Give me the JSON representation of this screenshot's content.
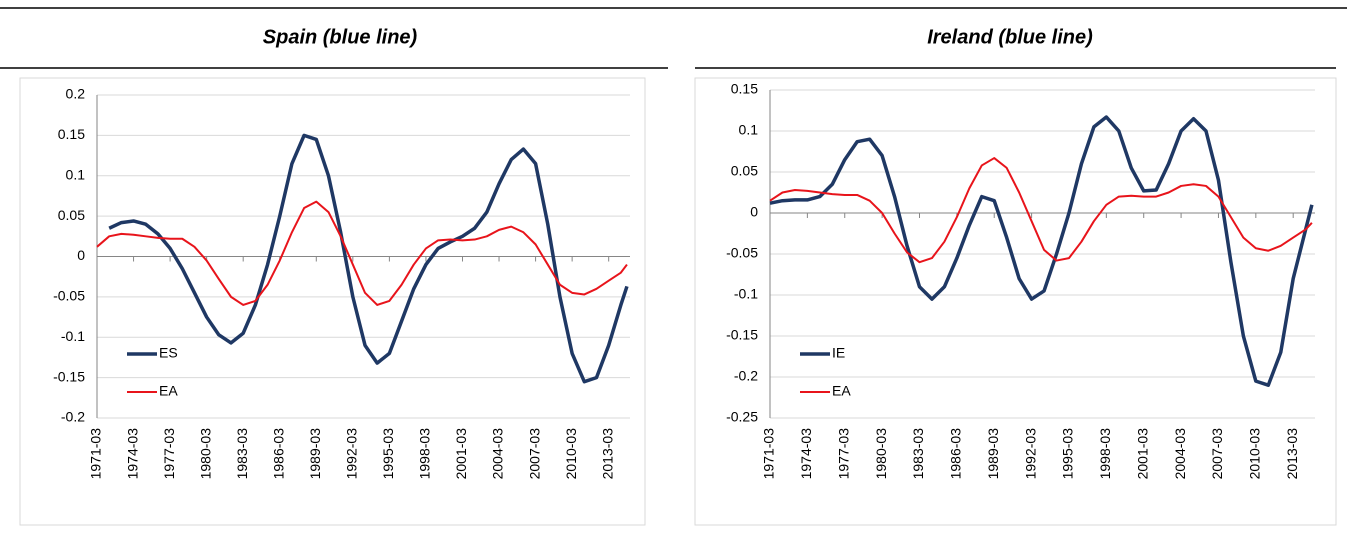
{
  "chart_data": [
    {
      "type": "line",
      "title": "Spain (blue line)",
      "x": [
        1971,
        1972,
        1973,
        1974,
        1975,
        1976,
        1977,
        1978,
        1979,
        1980,
        1981,
        1982,
        1983,
        1984,
        1985,
        1986,
        1987,
        1988,
        1989,
        1990,
        1991,
        1992,
        1993,
        1994,
        1995,
        1996,
        1997,
        1998,
        1999,
        2000,
        2001,
        2002,
        2003,
        2004,
        2005,
        2006,
        2007,
        2008,
        2009,
        2010,
        2011,
        2012,
        2013,
        2014,
        2014.5
      ],
      "series": [
        {
          "name": "ES",
          "color": "#1f3864",
          "values": [
            null,
            0.035,
            0.042,
            0.044,
            0.04,
            0.028,
            0.01,
            -0.015,
            -0.045,
            -0.075,
            -0.097,
            -0.107,
            -0.095,
            -0.06,
            -0.01,
            0.05,
            0.115,
            0.15,
            0.145,
            0.1,
            0.03,
            -0.05,
            -0.11,
            -0.132,
            -0.12,
            -0.08,
            -0.04,
            -0.01,
            0.01,
            0.018,
            0.025,
            0.035,
            0.055,
            0.09,
            0.12,
            0.133,
            0.115,
            0.04,
            -0.05,
            -0.12,
            -0.155,
            -0.15,
            -0.11,
            -0.06,
            -0.037
          ]
        },
        {
          "name": "EA",
          "color": "#e8141b",
          "values": [
            0.012,
            0.025,
            0.028,
            0.027,
            0.025,
            0.023,
            0.022,
            0.022,
            0.012,
            -0.005,
            -0.028,
            -0.05,
            -0.06,
            -0.055,
            -0.035,
            -0.005,
            0.03,
            0.06,
            0.068,
            0.055,
            0.025,
            -0.01,
            -0.045,
            -0.06,
            -0.055,
            -0.035,
            -0.01,
            0.01,
            0.02,
            0.021,
            0.02,
            0.021,
            0.025,
            0.033,
            0.037,
            0.03,
            0.015,
            -0.01,
            -0.035,
            -0.045,
            -0.047,
            -0.04,
            -0.03,
            -0.02,
            -0.01
          ]
        }
      ],
      "xlim": [
        1971,
        2014.75
      ],
      "xticks": [
        {
          "value": 1971,
          "label": "1971-03"
        },
        {
          "value": 1974,
          "label": "1974-03"
        },
        {
          "value": 1977,
          "label": "1977-03"
        },
        {
          "value": 1980,
          "label": "1980-03"
        },
        {
          "value": 1983,
          "label": "1983-03"
        },
        {
          "value": 1986,
          "label": "1986-03"
        },
        {
          "value": 1989,
          "label": "1989-03"
        },
        {
          "value": 1992,
          "label": "1992-03"
        },
        {
          "value": 1995,
          "label": "1995-03"
        },
        {
          "value": 1998,
          "label": "1998-03"
        },
        {
          "value": 2001,
          "label": "2001-03"
        },
        {
          "value": 2004,
          "label": "2004-03"
        },
        {
          "value": 2007,
          "label": "2007-03"
        },
        {
          "value": 2010,
          "label": "2010-03"
        },
        {
          "value": 2013,
          "label": "2013-03"
        }
      ],
      "ylim": [
        -0.2,
        0.2
      ],
      "yticks": [
        -0.2,
        -0.15,
        -0.1,
        -0.05,
        0,
        0.05,
        0.1,
        0.15,
        0.2
      ],
      "grid": true,
      "legend": "lower left"
    },
    {
      "type": "line",
      "title": "Ireland (blue line)",
      "x": [
        1971,
        1972,
        1973,
        1974,
        1975,
        1976,
        1977,
        1978,
        1979,
        1980,
        1981,
        1982,
        1983,
        1984,
        1985,
        1986,
        1987,
        1988,
        1989,
        1990,
        1991,
        1992,
        1993,
        1994,
        1995,
        1996,
        1997,
        1998,
        1999,
        2000,
        2001,
        2002,
        2003,
        2004,
        2005,
        2006,
        2007,
        2008,
        2009,
        2010,
        2011,
        2012,
        2013,
        2014,
        2014.5
      ],
      "series": [
        {
          "name": "IE",
          "color": "#1f3864",
          "values": [
            0.012,
            0.015,
            0.016,
            0.016,
            0.02,
            0.035,
            0.065,
            0.087,
            0.09,
            0.07,
            0.02,
            -0.04,
            -0.09,
            -0.105,
            -0.09,
            -0.055,
            -0.015,
            0.02,
            0.015,
            -0.03,
            -0.08,
            -0.105,
            -0.095,
            -0.05,
            0,
            0.06,
            0.105,
            0.117,
            0.1,
            0.055,
            0.027,
            0.028,
            0.06,
            0.1,
            0.115,
            0.1,
            0.04,
            -0.06,
            -0.15,
            -0.205,
            -0.21,
            -0.17,
            -0.08,
            -0.02,
            0.01
          ]
        },
        {
          "name": "EA",
          "color": "#e8141b",
          "values": [
            0.015,
            0.025,
            0.028,
            0.027,
            0.025,
            0.023,
            0.022,
            0.022,
            0.015,
            0,
            -0.025,
            -0.048,
            -0.06,
            -0.055,
            -0.035,
            -0.005,
            0.03,
            0.058,
            0.067,
            0.055,
            0.025,
            -0.01,
            -0.045,
            -0.058,
            -0.055,
            -0.035,
            -0.01,
            0.01,
            0.02,
            0.021,
            0.02,
            0.02,
            0.025,
            0.033,
            0.035,
            0.033,
            0.02,
            -0.005,
            -0.03,
            -0.043,
            -0.046,
            -0.04,
            -0.03,
            -0.02,
            -0.012
          ]
        }
      ],
      "xlim": [
        1971,
        2014.75
      ],
      "xticks": [
        {
          "value": 1971,
          "label": "1971-03"
        },
        {
          "value": 1974,
          "label": "1974-03"
        },
        {
          "value": 1977,
          "label": "1977-03"
        },
        {
          "value": 1980,
          "label": "1980-03"
        },
        {
          "value": 1983,
          "label": "1983-03"
        },
        {
          "value": 1986,
          "label": "1986-03"
        },
        {
          "value": 1989,
          "label": "1989-03"
        },
        {
          "value": 1992,
          "label": "1992-03"
        },
        {
          "value": 1995,
          "label": "1995-03"
        },
        {
          "value": 1998,
          "label": "1998-03"
        },
        {
          "value": 2001,
          "label": "2001-03"
        },
        {
          "value": 2004,
          "label": "2004-03"
        },
        {
          "value": 2007,
          "label": "2007-03"
        },
        {
          "value": 2010,
          "label": "2010-03"
        },
        {
          "value": 2013,
          "label": "2013-03"
        }
      ],
      "ylim": [
        -0.25,
        0.15
      ],
      "yticks": [
        -0.25,
        -0.2,
        -0.15,
        -0.1,
        -0.05,
        0,
        0.05,
        0.1,
        0.15
      ],
      "grid": true,
      "legend": "lower left"
    }
  ]
}
